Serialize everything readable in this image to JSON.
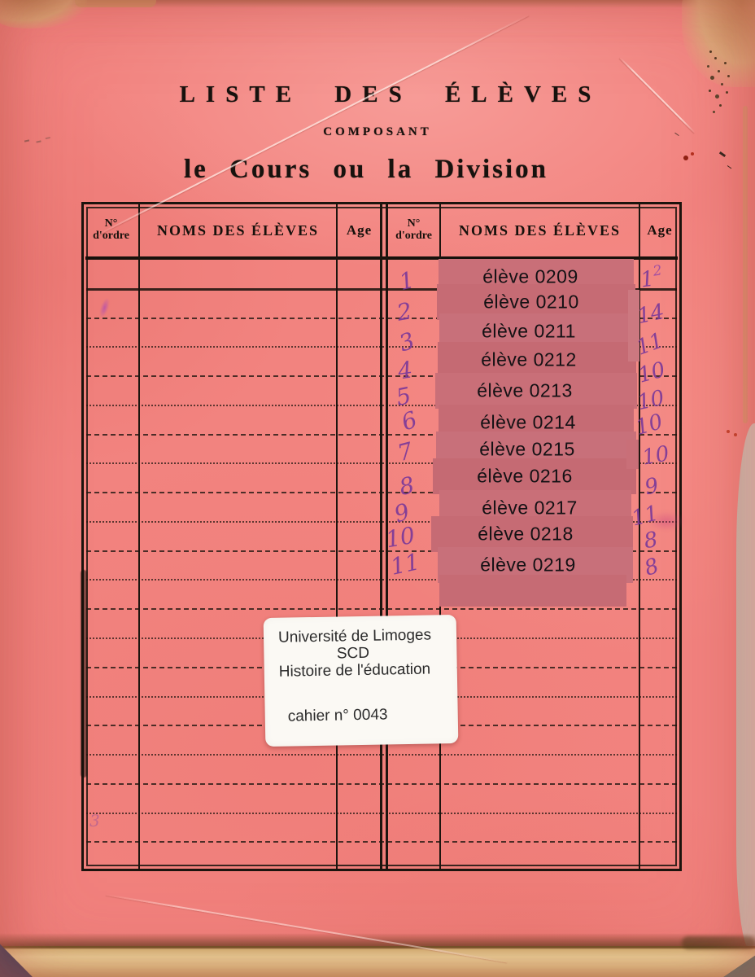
{
  "header": {
    "title": "LISTE  DES  ÉLÈVES",
    "subtitle": "COMPOSANT",
    "course_line": "le Cours ou la Division"
  },
  "table": {
    "left_group": {
      "order_no": "N°",
      "order_word": "d'ordre",
      "names": "NOMS DES ÉLÈVES",
      "age": "Age"
    },
    "right_group": {
      "order_no": "N°",
      "order_word": "d'ordre",
      "names": "NOMS DES ÉLÈVES",
      "age": "Age"
    },
    "students": [
      {
        "order": "1",
        "name": "élève 0209",
        "age": "12"
      },
      {
        "order": "2",
        "name": "élève 0210",
        "age": "14"
      },
      {
        "order": "3",
        "name": "élève 0211",
        "age": "11"
      },
      {
        "order": "4",
        "name": "élève 0212",
        "age": "10"
      },
      {
        "order": "5",
        "name": "élève 0213",
        "age": "10"
      },
      {
        "order": "6",
        "name": "élève 0214",
        "age": "10"
      },
      {
        "order": "7",
        "name": "élève 0215",
        "age": "10"
      },
      {
        "order": "8",
        "name": "élève 0216",
        "age": "9"
      },
      {
        "order": "9",
        "name": "élève 0217",
        "age": "11"
      },
      {
        "order": "10",
        "name": "élève 0218",
        "age": "8"
      },
      {
        "order": "11",
        "name": "élève 0219",
        "age": "8"
      }
    ]
  },
  "sticker": {
    "line1": "Université de Limoges",
    "line2": "SCD",
    "line3": "Histoire de l'éducation",
    "cahier": "cahier n° 0043"
  },
  "margin_mark": "3",
  "colors": {
    "cover_pink": "#f2837f",
    "overlay_rose": "#c76e77",
    "ink_purple": "#7c3a99",
    "table_ink": "#1b140e",
    "sticker_white": "#fbf9f4",
    "page_edge_cream": "#efe0a2"
  }
}
